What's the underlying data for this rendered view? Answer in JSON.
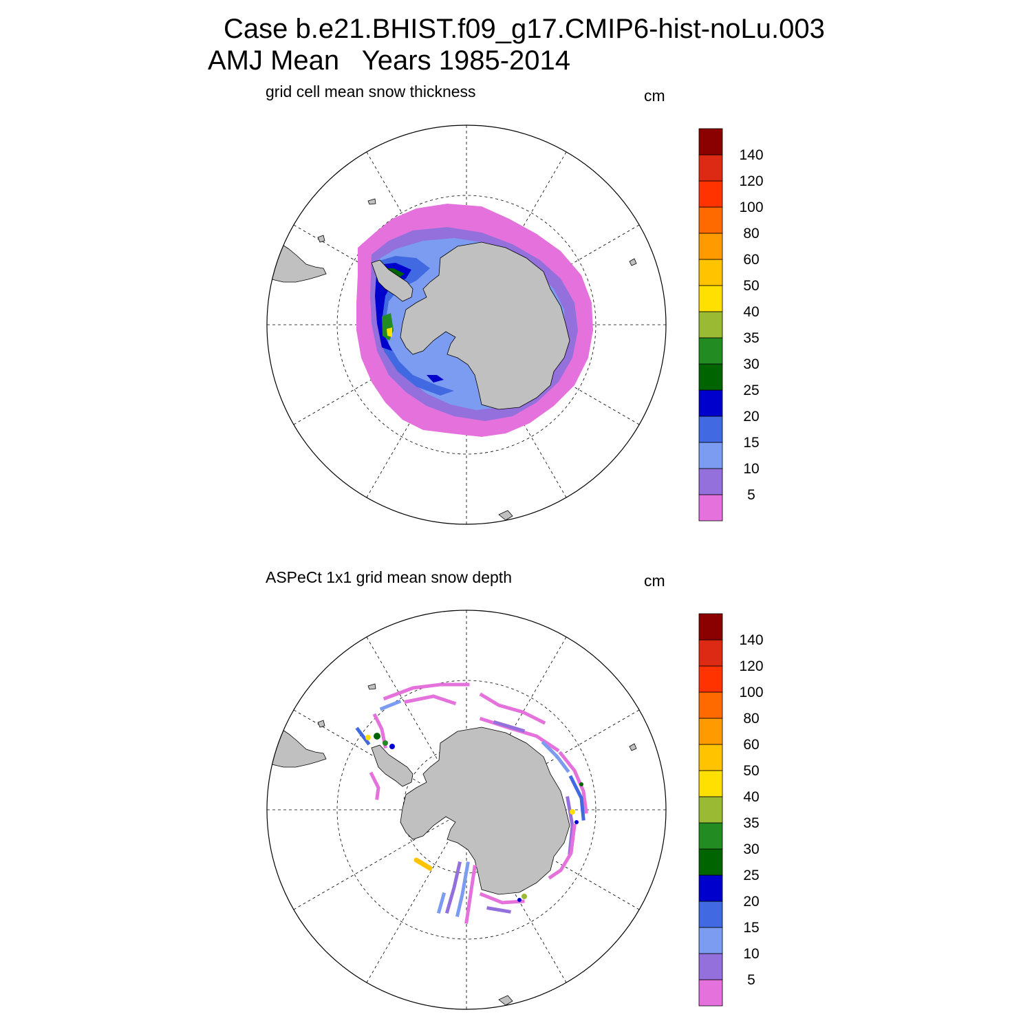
{
  "header": {
    "case_line": "Case b.e21.BHIST.f09_g17.CMIP6-hist-noLu.003",
    "mean_line": "AMJ Mean   Years 1985-2014"
  },
  "colorbar": {
    "levels": [
      "5",
      "10",
      "15",
      "20",
      "25",
      "30",
      "35",
      "40",
      "50",
      "60",
      "80",
      "100",
      "120",
      "140"
    ],
    "colors": [
      "#e572dc",
      "#9370db",
      "#7b9cf0",
      "#4169e1",
      "#0000cd",
      "#006400",
      "#228b22",
      "#9aba34",
      "#ffe000",
      "#ffc300",
      "#ff9a00",
      "#ff6a00",
      "#ff3300",
      "#dc2a14",
      "#8b0000"
    ]
  },
  "panels": [
    {
      "id": "model",
      "title": "grid cell mean snow thickness",
      "unit": "cm"
    },
    {
      "id": "obs",
      "title": "ASPeCt 1x1 grid mean snow depth",
      "unit": "cm"
    }
  ],
  "map_style": {
    "land": "#c0c0c0",
    "ocean": "#ffffff",
    "grid": "#000000",
    "projection": "south polar stereographic"
  }
}
